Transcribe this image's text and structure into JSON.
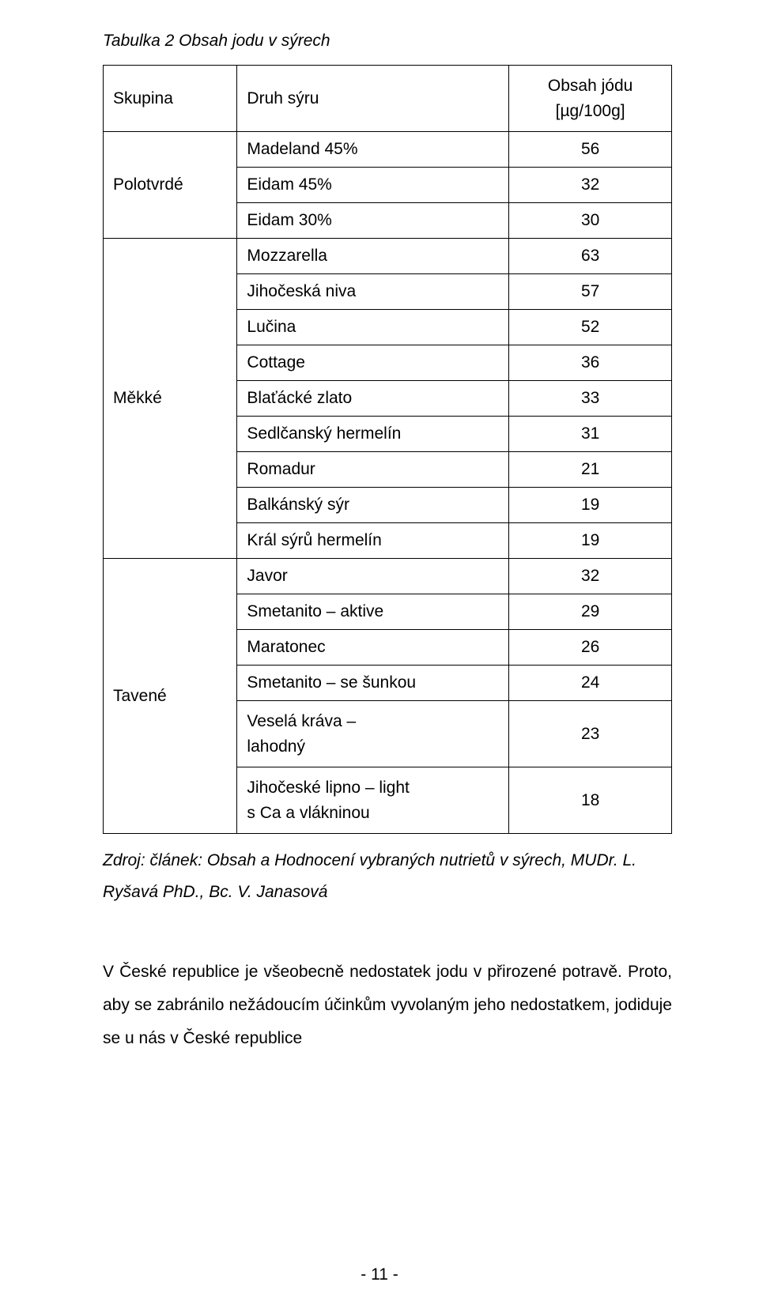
{
  "caption": "Tabulka 2 Obsah jodu v sýrech",
  "header": {
    "group": "Skupina",
    "type": "Druh sýru",
    "value_l1": "Obsah jódu",
    "value_l2": "[µg/100g]"
  },
  "groups": [
    {
      "name": "Polotvrdé",
      "rows": [
        {
          "type": "Madeland 45%",
          "value": "56"
        },
        {
          "type": "Eidam 45%",
          "value": "32"
        },
        {
          "type": "Eidam 30%",
          "value": "30"
        }
      ]
    },
    {
      "name": "Měkké",
      "rows": [
        {
          "type": "Mozzarella",
          "value": "63"
        },
        {
          "type": "Jihočeská niva",
          "value": "57"
        },
        {
          "type": "Lučina",
          "value": "52"
        },
        {
          "type": "Cottage",
          "value": "36"
        },
        {
          "type": "Blaťácké zlato",
          "value": "33"
        },
        {
          "type": "Sedlčanský hermelín",
          "value": "31"
        },
        {
          "type": "Romadur",
          "value": "21"
        },
        {
          "type": "Balkánský sýr",
          "value": "19"
        },
        {
          "type": "Král sýrů hermelín",
          "value": "19"
        }
      ]
    },
    {
      "name": "Tavené",
      "rows": [
        {
          "type": "Javor",
          "value": "32"
        },
        {
          "type": "Smetanito – aktive",
          "value": "29"
        },
        {
          "type": "Maratonec",
          "value": "26"
        },
        {
          "type": "Smetanito – se šunkou",
          "value": "24"
        },
        {
          "type_l1": "Veselá kráva –",
          "type_l2": "lahodný",
          "value": "23",
          "multiline": true
        },
        {
          "type_l1": "Jihočeské lipno – light",
          "type_l2": "s Ca a vlákninou",
          "value": "18",
          "multiline": true
        }
      ]
    }
  ],
  "source": "Zdroj: článek: Obsah a Hodnocení vybraných nutrietů v sýrech, MUDr. L. Ryšavá PhD., Bc. V. Janasová",
  "body": "V České republice je všeobecně nedostatek jodu v přirozené potravě. Proto, aby se zabránilo nežádoucím účinkům vyvolaným jeho nedostatkem, jodiduje se u nás v České republice",
  "page_number": "- 11 -",
  "style": {
    "font_body_pt": 21,
    "border_color": "#000000",
    "background_color": "#ffffff",
    "text_color": "#000000"
  }
}
